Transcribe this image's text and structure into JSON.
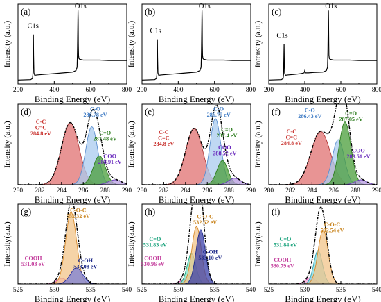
{
  "chart_data": [
    {
      "id": "a",
      "panel_label": "(a)",
      "type": "line",
      "xlabel": "Binding Energy (eV)",
      "ylabel": "Intensity (a.u.)",
      "xlim": [
        200,
        800
      ],
      "ylim": [
        0,
        100
      ],
      "xticks": [
        200,
        400,
        600,
        800
      ],
      "show_yticks": false,
      "series": [
        {
          "color": "#000000",
          "x": [
            200,
            270,
            280,
            282,
            284,
            285,
            286,
            288,
            292,
            310,
            340,
            400,
            450,
            500,
            520,
            526,
            528,
            530,
            531,
            532,
            533,
            534,
            536,
            540,
            560,
            600,
            650,
            700,
            750,
            800
          ],
          "y": [
            5,
            5.5,
            7,
            12,
            38,
            62,
            36,
            14,
            11,
            11.5,
            12,
            13,
            14,
            15,
            17,
            21,
            40,
            78,
            92,
            80,
            50,
            36,
            32,
            31,
            30,
            30,
            30,
            29.5,
            29.5,
            29.5
          ]
        }
      ],
      "peak_labels": [
        {
          "text": "C1s",
          "x": 283,
          "y": 70
        },
        {
          "text": "O1s",
          "x": 545,
          "y": 95
        }
      ]
    },
    {
      "id": "b",
      "panel_label": "(b)",
      "type": "line",
      "xlabel": "Binding Energy (eV)",
      "ylabel": "Intensity (a.u.)",
      "xlim": [
        200,
        800
      ],
      "ylim": [
        0,
        100
      ],
      "xticks": [
        200,
        400,
        600,
        800
      ],
      "show_yticks": false,
      "series": [
        {
          "color": "#000000",
          "x": [
            200,
            270,
            280,
            282,
            284,
            285,
            286,
            288,
            292,
            310,
            340,
            400,
            450,
            500,
            520,
            526,
            528,
            530,
            531,
            532,
            533,
            534,
            536,
            540,
            560,
            600,
            650,
            700,
            750,
            800
          ],
          "y": [
            5,
            5.5,
            7,
            12,
            35,
            56,
            33,
            14,
            11,
            11.5,
            12,
            13,
            14,
            15,
            17,
            21,
            40,
            78,
            92,
            80,
            50,
            36,
            32,
            31,
            30,
            30,
            30,
            29.5,
            29.5,
            29.5
          ]
        }
      ],
      "peak_labels": [
        {
          "text": "C1s",
          "x": 275,
          "y": 64
        },
        {
          "text": "O1s",
          "x": 545,
          "y": 95
        }
      ]
    },
    {
      "id": "c",
      "panel_label": "(c)",
      "type": "line",
      "xlabel": "Binding Energy (eV)",
      "ylabel": "Intensity (a.u.)",
      "xlim": [
        200,
        800
      ],
      "ylim": [
        0,
        100
      ],
      "xticks": [
        200,
        400,
        600,
        800
      ],
      "show_yticks": false,
      "series": [
        {
          "color": "#000000",
          "x": [
            200,
            270,
            280,
            282,
            284,
            285,
            286,
            288,
            292,
            310,
            340,
            380,
            396,
            400,
            404,
            420,
            450,
            500,
            520,
            526,
            528,
            530,
            531,
            532,
            533,
            534,
            536,
            540,
            560,
            600,
            650,
            700,
            750,
            800
          ],
          "y": [
            5,
            5.5,
            7,
            12,
            34,
            50,
            30,
            14,
            11,
            11.5,
            12,
            13,
            14,
            17,
            14,
            14,
            14.5,
            15,
            17,
            21,
            40,
            78,
            92,
            80,
            50,
            36,
            32,
            31,
            30,
            30,
            30,
            29.5,
            29.5,
            29.5
          ]
        }
      ],
      "peak_labels": [
        {
          "text": "C1s",
          "x": 275,
          "y": 58
        },
        {
          "text": "O1s",
          "x": 545,
          "y": 95
        }
      ]
    },
    {
      "id": "d",
      "panel_label": "(d)",
      "type": "area",
      "xlabel": "Binding Energy (eV)",
      "ylabel": "Intensity (a.u.)",
      "xlim": [
        280,
        290
      ],
      "ylim": [
        0,
        100
      ],
      "xticks": [
        280,
        282,
        284,
        286,
        288,
        290
      ],
      "show_yticks": false,
      "components": [
        {
          "center": 284.8,
          "amplitude": 77,
          "sigma": 0.8,
          "fill": "#e07070",
          "stroke": "#b23a3a"
        },
        {
          "center": 286.78,
          "amplitude": 72,
          "sigma": 0.55,
          "fill": "#a9cbef",
          "stroke": "#5b8fcf"
        },
        {
          "center": 287.48,
          "amplitude": 36,
          "sigma": 0.55,
          "fill": "#4a9e3a",
          "stroke": "#2e7d1f"
        },
        {
          "center": 288.91,
          "amplitude": 6,
          "sigma": 0.6,
          "fill": "#b79be0",
          "stroke": "#6a3dbd"
        }
      ],
      "envelope_color": "#000000",
      "annotations": [
        {
          "lines": [
            "C-C",
            "C=C",
            "284.8 eV"
          ],
          "x": 282.1,
          "y": 76,
          "color": "#c8302c"
        },
        {
          "lines": [
            "C-O",
            "286.78 eV"
          ],
          "x": 287.1,
          "y": 92,
          "color": "#3d7ac4"
        },
        {
          "lines": [
            "C=O",
            "287.48 eV"
          ],
          "x": 288.0,
          "y": 62,
          "color": "#2e7d1f"
        },
        {
          "lines": [
            "COO",
            "288.91 eV"
          ],
          "x": 288.45,
          "y": 33,
          "color": "#6a2bbd"
        }
      ]
    },
    {
      "id": "e",
      "panel_label": "(e)",
      "type": "area",
      "xlabel": "Binding Energy (eV)",
      "ylabel": "Intensity (a.u.)",
      "xlim": [
        280,
        290
      ],
      "ylim": [
        0,
        100
      ],
      "xticks": [
        280,
        282,
        284,
        286,
        288,
        290
      ],
      "show_yticks": false,
      "components": [
        {
          "center": 284.8,
          "amplitude": 70,
          "sigma": 0.78,
          "fill": "#e07070",
          "stroke": "#b23a3a"
        },
        {
          "center": 286.75,
          "amplitude": 82,
          "sigma": 0.5,
          "fill": "#a9cbef",
          "stroke": "#5b8fcf"
        },
        {
          "center": 287.4,
          "amplitude": 30,
          "sigma": 0.5,
          "fill": "#4a9e3a",
          "stroke": "#2e7d1f"
        },
        {
          "center": 288.52,
          "amplitude": 8,
          "sigma": 0.55,
          "fill": "#b79be0",
          "stroke": "#6a3dbd"
        }
      ],
      "envelope_color": "#000000",
      "annotations": [
        {
          "lines": [
            "C-C",
            "C=C",
            "284.8 eV"
          ],
          "x": 282.0,
          "y": 63,
          "color": "#c8302c"
        },
        {
          "lines": [
            "C-O",
            "286.75 eV"
          ],
          "x": 287.05,
          "y": 92,
          "color": "#3d7ac4"
        },
        {
          "lines": [
            "C=O",
            "287.4 eV"
          ],
          "x": 287.8,
          "y": 66,
          "color": "#2e7d1f"
        },
        {
          "lines": [
            "COO",
            "288.52 eV"
          ],
          "x": 287.6,
          "y": 44,
          "color": "#6a2bbd"
        }
      ]
    },
    {
      "id": "f",
      "panel_label": "(f)",
      "type": "area",
      "xlabel": "Binding Energy (eV)",
      "ylabel": "Intensity (a.u.)",
      "xlim": [
        280,
        290
      ],
      "ylim": [
        0,
        100
      ],
      "xticks": [
        280,
        282,
        284,
        286,
        288,
        290
      ],
      "show_yticks": false,
      "components": [
        {
          "center": 284.8,
          "amplitude": 66,
          "sigma": 0.9,
          "fill": "#e07070",
          "stroke": "#b23a3a"
        },
        {
          "center": 286.43,
          "amplitude": 56,
          "sigma": 0.55,
          "fill": "#a9cbef",
          "stroke": "#5b8fcf"
        },
        {
          "center": 287.05,
          "amplitude": 78,
          "sigma": 0.55,
          "fill": "#4a9e3a",
          "stroke": "#2e7d1f"
        },
        {
          "center": 288.51,
          "amplitude": 6,
          "sigma": 0.55,
          "fill": "#b79be0",
          "stroke": "#6a3dbd"
        }
      ],
      "envelope_color": "#000000",
      "annotations": [
        {
          "lines": [
            "C-C",
            "C=C",
            "284.8 eV"
          ],
          "x": 282.1,
          "y": 64,
          "color": "#c8302c"
        },
        {
          "lines": [
            "C-O",
            "286.43 eV"
          ],
          "x": 283.8,
          "y": 90,
          "color": "#3d7ac4"
        },
        {
          "lines": [
            "C=O",
            "287.05 eV"
          ],
          "x": 287.6,
          "y": 86,
          "color": "#2e7d1f"
        },
        {
          "lines": [
            "COO",
            "288.51 eV"
          ],
          "x": 288.3,
          "y": 40,
          "color": "#6a2bbd"
        }
      ]
    },
    {
      "id": "g",
      "panel_label": "(g)",
      "type": "area",
      "xlabel": "Binding Energy (eV)",
      "ylabel": "Intensity(a.u.)",
      "xlim": [
        525,
        540
      ],
      "ylim": [
        0,
        100
      ],
      "xticks": [
        525,
        530,
        535,
        540
      ],
      "show_yticks": false,
      "components": [
        {
          "center": 531.03,
          "amplitude": 7,
          "sigma": 0.7,
          "fill": "#f2a3d4",
          "stroke": "#c2399a"
        },
        {
          "center": 532.32,
          "amplitude": 90,
          "sigma": 0.75,
          "fill": "#f2c48a",
          "stroke": "#d88a2a"
        },
        {
          "center": 533.08,
          "amplitude": 20,
          "sigma": 0.85,
          "fill": "#7a7fd6",
          "stroke": "#2a2f9b"
        }
      ],
      "envelope_color": "#000000",
      "annotations": [
        {
          "lines": [
            "C-O-C",
            "532.32 eV"
          ],
          "x": 533.3,
          "y": 90,
          "color": "#c9851f"
        },
        {
          "lines": [
            "COOH",
            "531.03 eV"
          ],
          "x": 527.1,
          "y": 30,
          "color": "#c2399a"
        },
        {
          "lines": [
            "C-OH",
            "533.08 eV"
          ],
          "x": 534.3,
          "y": 27,
          "color": "#1f2b8a"
        }
      ]
    },
    {
      "id": "h",
      "panel_label": "(h)",
      "type": "area",
      "xlabel": "Binding Energy (eV)",
      "ylabel": "Intensity(a.u.)",
      "xlim": [
        525,
        540
      ],
      "ylim": [
        0,
        100
      ],
      "xticks": [
        525,
        530,
        535,
        540
      ],
      "show_yticks": false,
      "components": [
        {
          "center": 530.96,
          "amplitude": 6,
          "sigma": 0.65,
          "fill": "#f2a3d4",
          "stroke": "#c2399a"
        },
        {
          "center": 531.83,
          "amplitude": 38,
          "sigma": 0.6,
          "fill": "#7fe0c4",
          "stroke": "#1aa37c"
        },
        {
          "center": 532.52,
          "amplitude": 72,
          "sigma": 0.65,
          "fill": "#f2c48a",
          "stroke": "#d88a2a"
        },
        {
          "center": 533.1,
          "amplitude": 68,
          "sigma": 0.65,
          "fill": "#3a3fa8",
          "stroke": "#1f2b8a"
        }
      ],
      "envelope_color": "#000000",
      "annotations": [
        {
          "lines": [
            "C=O",
            "531.83 eV"
          ],
          "x": 526.8,
          "y": 54,
          "color": "#1aa37c"
        },
        {
          "lines": [
            "C-O-C",
            "532.52 eV"
          ],
          "x": 533.7,
          "y": 82,
          "color": "#c9851f"
        },
        {
          "lines": [
            "COOH",
            "530.96 eV"
          ],
          "x": 526.5,
          "y": 30,
          "color": "#c2399a"
        },
        {
          "lines": [
            "C-OH",
            "533.10 eV"
          ],
          "x": 534.4,
          "y": 38,
          "color": "#1f2b8a"
        }
      ]
    },
    {
      "id": "i",
      "panel_label": "(i)",
      "type": "area",
      "xlabel": "Binding Energy (eV)",
      "ylabel": "Intensity(a.u.)",
      "xlim": [
        525,
        540
      ],
      "ylim": [
        0,
        100
      ],
      "xticks": [
        525,
        530,
        535,
        540
      ],
      "show_yticks": false,
      "components": [
        {
          "center": 530.79,
          "amplitude": 8,
          "sigma": 0.65,
          "fill": "#f2a3d4",
          "stroke": "#c2399a"
        },
        {
          "center": 531.84,
          "amplitude": 42,
          "sigma": 0.6,
          "fill": "#7fd8e0",
          "stroke": "#2a9fb0"
        },
        {
          "center": 532.54,
          "amplitude": 68,
          "sigma": 0.7,
          "fill": "#f2c48a",
          "stroke": "#d88a2a"
        }
      ],
      "envelope_color": "#000000",
      "annotations": [
        {
          "lines": [
            "C=O",
            "531.84 eV"
          ],
          "x": 527.3,
          "y": 54,
          "color": "#1aa37c"
        },
        {
          "lines": [
            "C-O-C",
            "532.54 eV"
          ],
          "x": 533.8,
          "y": 72,
          "color": "#c9851f"
        },
        {
          "lines": [
            "COOH",
            "530.79 eV"
          ],
          "x": 526.9,
          "y": 28,
          "color": "#c2399a"
        }
      ]
    }
  ]
}
